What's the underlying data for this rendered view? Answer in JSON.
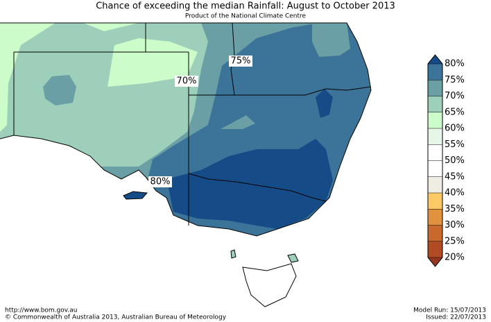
{
  "header": {
    "title": "Chance of exceeding the median Rainfall: August to October 2013",
    "subtitle": "Product of the National Climate Centre"
  },
  "map": {
    "contour_labels": [
      "75%",
      "70%",
      "80%"
    ]
  },
  "legend": {
    "ticks": [
      {
        "value": 80,
        "label": "80%"
      },
      {
        "value": 75,
        "label": "75%"
      },
      {
        "value": 70,
        "label": "70%"
      },
      {
        "value": 65,
        "label": "65%"
      },
      {
        "value": 60,
        "label": "60%"
      },
      {
        "value": 55,
        "label": "55%"
      },
      {
        "value": 50,
        "label": "50%"
      },
      {
        "value": 45,
        "label": "45%"
      },
      {
        "value": 40,
        "label": "40%"
      },
      {
        "value": 35,
        "label": "35%"
      },
      {
        "value": 30,
        "label": "30%"
      },
      {
        "value": 25,
        "label": "25%"
      },
      {
        "value": 20,
        "label": "20%"
      }
    ],
    "colors": [
      "#3b7399",
      "#6a9fa5",
      "#9dcfba",
      "#cbfcc9",
      "#e8f6ea",
      "#ffffff",
      "#ffffff",
      "#f0ebe3",
      "#fcca66",
      "#e0923f",
      "#c86a2e",
      "#b04c25"
    ],
    "above_color": "#154c87",
    "below_color": "#963520"
  },
  "footer": {
    "url": "http://www.bom.gov.au",
    "copyright": "©  Commonwealth of Australia 2013, Australian Bureau of Meteorology",
    "model_run": "Model Run: 15/07/2013",
    "issued": "Issued: 22/07/2013"
  }
}
